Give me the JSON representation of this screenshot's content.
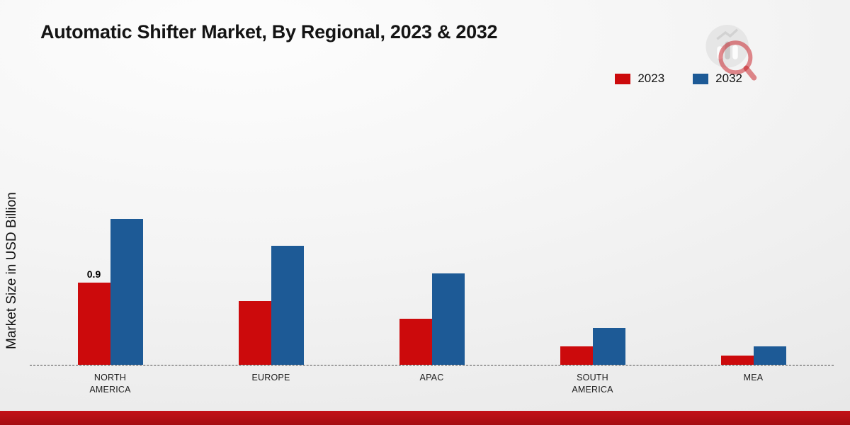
{
  "title": "Automatic Shifter Market, By Regional, 2023 & 2032",
  "ylabel": "Market Size in USD Billion",
  "chart_data": {
    "type": "bar",
    "title": "Automatic Shifter Market, By Regional, 2023 & 2032",
    "xlabel": "",
    "ylabel": "Market Size in USD Billion",
    "categories": [
      "NORTH AMERICA",
      "EUROPE",
      "APAC",
      "SOUTH AMERICA",
      "MEA"
    ],
    "series": [
      {
        "name": "2023",
        "color": "#cc0a0c",
        "values": [
          0.9,
          0.7,
          0.5,
          0.2,
          0.1
        ]
      },
      {
        "name": "2032",
        "color": "#1d5a96",
        "values": [
          1.6,
          1.3,
          1.0,
          0.4,
          0.2
        ]
      }
    ],
    "annotations": [
      {
        "series": "2023",
        "category": "NORTH AMERICA",
        "text": "0.9"
      }
    ],
    "ylim": [
      0,
      2.75
    ],
    "y_axis_ticks_visible": false,
    "gridlines": false,
    "baseline_style": "dashed",
    "legend_position": "top-right"
  },
  "branding": {
    "logo_icon": "bar-chart-magnifier-logo",
    "footer_bar_color": "#b01014"
  }
}
